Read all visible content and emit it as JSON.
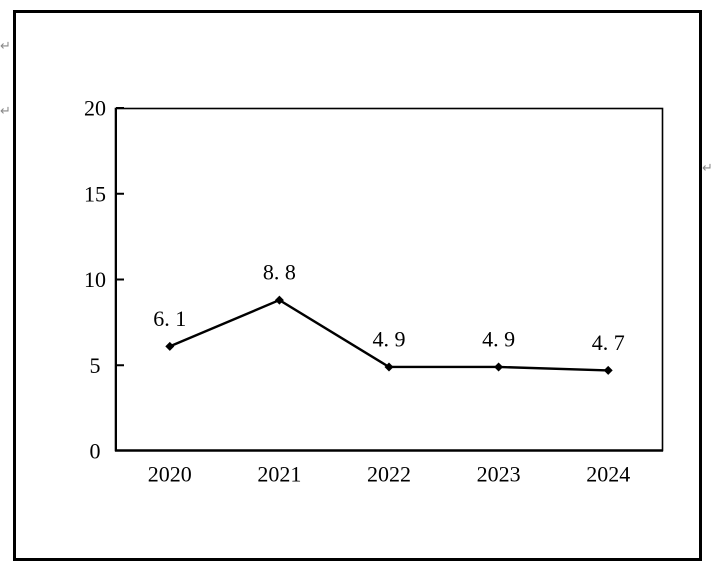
{
  "page": {
    "background_color": "#ffffff",
    "border_color": "#000000",
    "paragraph_mark_glyph": "↵"
  },
  "chart_data": {
    "type": "line",
    "title": "",
    "xlabel": "",
    "ylabel": "",
    "categories": [
      "2020",
      "2021",
      "2022",
      "2023",
      "2024"
    ],
    "series": [
      {
        "name": "",
        "values": [
          6.1,
          8.8,
          4.9,
          4.9,
          4.7
        ]
      }
    ],
    "point_labels": [
      "6. 1",
      "8. 8",
      "4. 9",
      "4. 9",
      "4. 7"
    ],
    "ylim": [
      0,
      20
    ],
    "yticks": [
      0,
      5,
      10,
      15,
      20
    ],
    "grid": false,
    "legend": "none",
    "marker": "diamond",
    "line_color": "#000000",
    "marker_color": "#000000",
    "axis_color": "#000000",
    "label_color": "#000000"
  }
}
